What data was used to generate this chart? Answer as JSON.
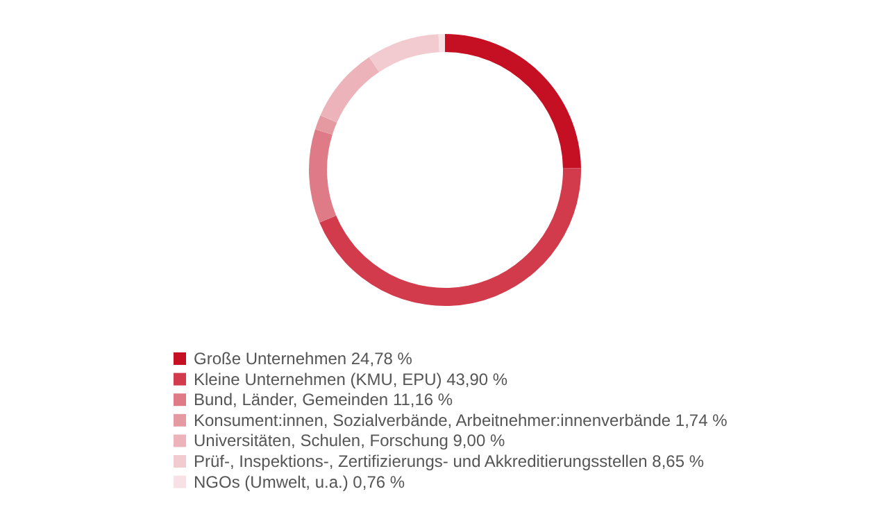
{
  "chart_data": {
    "type": "donut",
    "legend": "bottom",
    "categories": [
      "Große Unternehmen",
      "Kleine Unternehmen (KMU, EPU)",
      "Bund, Länder, Gemeinden",
      "Konsument:innen, Sozialverbände, Arbeitnehmer:innenverbände",
      "Universitäten, Schulen, Forschung",
      "Prüf-, Inspektions-, Zertifizierungs- und Akkreditierungsstellen",
      "NGOs (Umwelt, u.a.)"
    ],
    "values": [
      24.78,
      43.9,
      11.16,
      1.74,
      9.0,
      8.65,
      0.76
    ],
    "value_labels": [
      "24,78 %",
      "43,90 %",
      "11,16 %",
      "1,74 %",
      "9,00 %",
      "8,65 %",
      "0,76 %"
    ],
    "colors": [
      "#c50f23",
      "#d13b4b",
      "#df7b86",
      "#e59aa2",
      "#ecb4ba",
      "#f2cbd0",
      "#f7e1e4"
    ]
  }
}
